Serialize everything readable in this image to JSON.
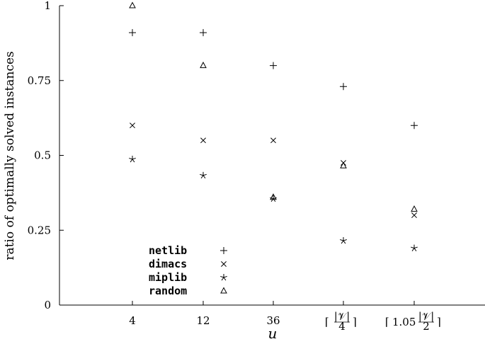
{
  "chart_data": {
    "type": "scatter",
    "title": "",
    "xlabel": "u",
    "ylabel": "ratio of optimally solved instances",
    "categories": [
      "4",
      "12",
      "36",
      "⌈|𝒱|/4⌉",
      "⌈1.05 |𝒱|/2⌉"
    ],
    "ylim": [
      0,
      1
    ],
    "yticks": [
      "0",
      "0.25",
      "0.5",
      "0.75",
      "1"
    ],
    "grid": false,
    "legend_position": "bottom-left",
    "series": [
      {
        "name": "netlib",
        "marker": "plus",
        "values": [
          0.91,
          0.91,
          0.8,
          0.73,
          0.6
        ]
      },
      {
        "name": "dimacs",
        "marker": "cross",
        "values": [
          0.6,
          0.55,
          0.55,
          0.475,
          0.3
        ]
      },
      {
        "name": "miplib",
        "marker": "star",
        "values": [
          0.487,
          0.433,
          0.355,
          0.215,
          0.19
        ]
      },
      {
        "name": "random",
        "marker": "triangle",
        "values": [
          1.0,
          0.8,
          0.36,
          0.465,
          0.32
        ]
      }
    ]
  }
}
